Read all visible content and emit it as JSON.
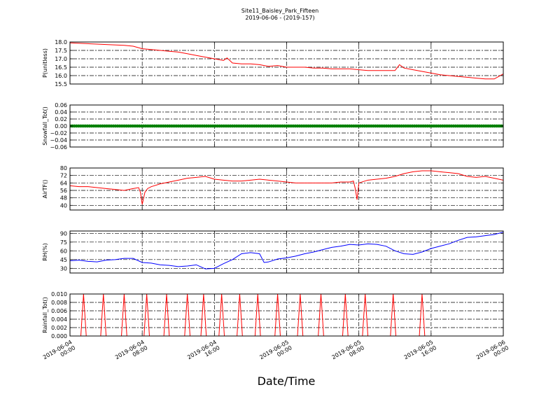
{
  "title_line1": "Site11_Baisley_Park_Fifteen",
  "title_line2": "2019-06-06 - (2019-157)",
  "xlabel": "Date/Time",
  "x_ticks": [
    {
      "l1": "2019-06-04",
      "l2": "00:00"
    },
    {
      "l1": "2019-06-04",
      "l2": "08:00"
    },
    {
      "l1": "2019-06-04",
      "l2": "16:00"
    },
    {
      "l1": "2019-06-05",
      "l2": "00:00"
    },
    {
      "l1": "2019-06-05",
      "l2": "08:00"
    },
    {
      "l1": "2019-06-05",
      "l2": "16:00"
    },
    {
      "l1": "2019-06-06",
      "l2": "00:00"
    }
  ],
  "chart_data": [
    {
      "type": "line",
      "ylabel": "P(unitless)",
      "ylim": [
        15.5,
        18.0
      ],
      "yticks": [
        "18.0",
        "17.5",
        "17.0",
        "16.5",
        "16.0",
        "15.5"
      ],
      "ytick_values": [
        18.0,
        17.5,
        17.0,
        16.5,
        16.0,
        15.5
      ],
      "color": "#ff0000",
      "grid": true,
      "x_hours": [
        0,
        2,
        4,
        6,
        7,
        8,
        9,
        10,
        11,
        12,
        13,
        14,
        15,
        16,
        17,
        17.4,
        18,
        19,
        20,
        21,
        22,
        23,
        24,
        25,
        26,
        27,
        28,
        29,
        30,
        31,
        32,
        33,
        36,
        36.5,
        37,
        38,
        39,
        40,
        41,
        42,
        43,
        44,
        45,
        46,
        47,
        47.5,
        48
      ],
      "values": [
        17.95,
        17.9,
        17.85,
        17.8,
        17.75,
        17.6,
        17.55,
        17.5,
        17.45,
        17.4,
        17.3,
        17.2,
        17.1,
        17.0,
        16.9,
        17.05,
        16.75,
        16.7,
        16.7,
        16.65,
        16.55,
        16.6,
        16.5,
        16.5,
        16.5,
        16.45,
        16.45,
        16.4,
        16.4,
        16.4,
        16.35,
        16.3,
        16.3,
        16.65,
        16.45,
        16.35,
        16.25,
        16.15,
        16.05,
        16.0,
        15.95,
        15.9,
        15.85,
        15.8,
        15.8,
        15.95,
        16.1
      ]
    },
    {
      "type": "scatter",
      "ylabel": "Snowfall_Tot()",
      "ylim": [
        -0.06,
        0.06
      ],
      "yticks": [
        "0.06",
        "0.04",
        "0.02",
        "0.00",
        "−0.02",
        "−0.04",
        "−0.06"
      ],
      "ytick_values": [
        0.06,
        0.04,
        0.02,
        0.0,
        -0.02,
        -0.04,
        -0.06
      ],
      "color": "#008000",
      "grid": true,
      "x_range_hours": [
        0,
        48
      ],
      "constant_value": 0.0
    },
    {
      "type": "line",
      "ylabel": "AirTF()",
      "ylim": [
        35,
        80
      ],
      "yticks": [
        "80",
        "72",
        "64",
        "56",
        "48",
        "40"
      ],
      "ytick_values": [
        80,
        72,
        64,
        56,
        48,
        40
      ],
      "color": "#ff0000",
      "grid": true,
      "x_hours": [
        0,
        1,
        2,
        3,
        4,
        5,
        6,
        7,
        7.6,
        7.8,
        8.0,
        8.3,
        8.6,
        9,
        10,
        11,
        12,
        13,
        14,
        15,
        16,
        17,
        18,
        19,
        20,
        21,
        22,
        23,
        24,
        25,
        26,
        27,
        28,
        29,
        30,
        31,
        31.4,
        31.6,
        31.8,
        32,
        33,
        34,
        35,
        36,
        37,
        38,
        39,
        40,
        41,
        42,
        43,
        44,
        45,
        46,
        47,
        48
      ],
      "values": [
        61,
        60,
        60,
        59,
        58,
        57,
        56,
        58,
        59,
        54,
        41,
        54,
        58,
        60,
        63,
        65,
        67,
        69,
        70,
        71,
        68,
        67,
        66,
        66,
        67,
        68,
        67,
        66,
        65,
        64,
        64,
        64,
        64,
        64,
        65,
        65,
        66,
        58,
        46,
        64,
        67,
        68,
        69,
        71,
        74,
        76,
        77,
        77,
        76,
        75,
        74,
        71,
        70,
        71,
        69,
        67
      ]
    },
    {
      "type": "line",
      "ylabel": "RH(%)",
      "ylim": [
        22,
        94
      ],
      "yticks": [
        "90",
        "75",
        "60",
        "45",
        "30"
      ],
      "ytick_values": [
        90,
        75,
        60,
        45,
        30
      ],
      "color": "#0000ff",
      "grid": true,
      "x_hours": [
        0,
        1,
        2,
        3,
        4,
        5,
        6,
        7,
        8,
        9,
        10,
        11,
        12,
        13,
        14,
        15,
        16,
        17,
        18,
        19,
        20,
        21,
        21.5,
        22,
        23,
        24,
        25,
        26,
        27,
        28,
        29,
        30,
        31,
        32,
        33,
        34,
        35,
        36,
        37,
        38,
        39,
        40,
        41,
        42,
        43,
        44,
        45,
        46,
        47,
        48
      ],
      "values": [
        43,
        44,
        42,
        41,
        44,
        45,
        47,
        47,
        40,
        39,
        36,
        35,
        33,
        34,
        36,
        29,
        30,
        38,
        45,
        55,
        57,
        55,
        40,
        41,
        46,
        48,
        51,
        55,
        58,
        62,
        66,
        68,
        71,
        70,
        72,
        71,
        68,
        60,
        55,
        54,
        58,
        64,
        68,
        72,
        78,
        83,
        84,
        86,
        88,
        92
      ]
    },
    {
      "type": "line",
      "ylabel": "Rainfall_Tot()",
      "ylim": [
        0.0,
        0.01
      ],
      "yticks": [
        "0.010",
        "0.008",
        "0.006",
        "0.004",
        "0.002",
        "0.000"
      ],
      "ytick_values": [
        0.01,
        0.008,
        0.006,
        0.004,
        0.002,
        0.0
      ],
      "color": "#ff0000",
      "grid": true,
      "spike_hours": [
        1.5,
        3.7,
        6.0,
        8.5,
        10.7,
        13.0,
        14.8,
        16.8,
        18.8,
        20.8,
        23.0,
        25.5,
        27.8,
        30.5,
        32.7,
        35.8,
        39.0
      ],
      "spike_value": 0.01,
      "spike_halfwidth_hours": 0.3
    }
  ]
}
